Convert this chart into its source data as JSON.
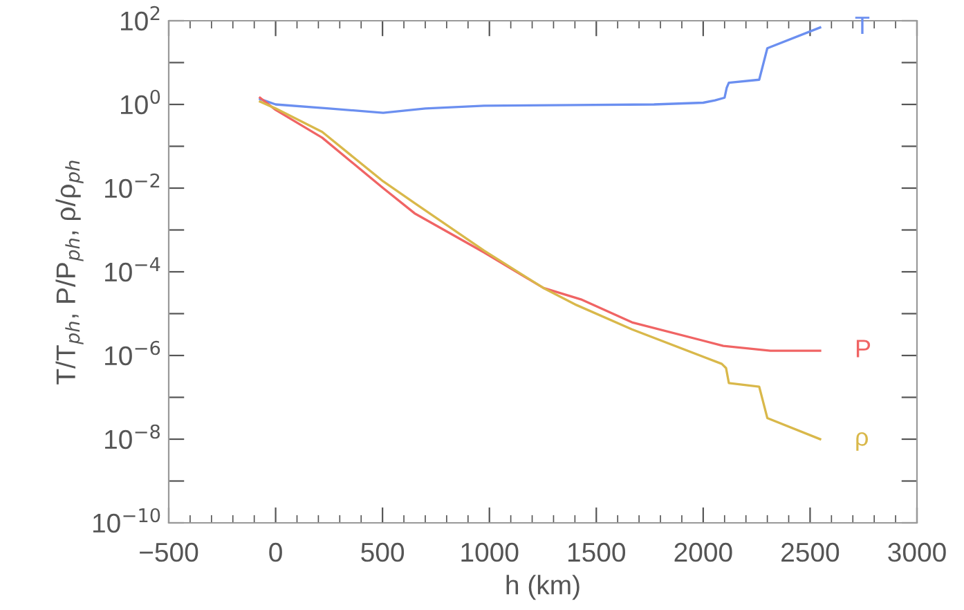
{
  "chart_data": {
    "type": "line",
    "xlabel": "h (km)",
    "ylabel": "T/T$_{ph}$, P/P$_{ph}$, ρ/ρ$_{ph}$",
    "log": "y",
    "grid": false,
    "legend": false,
    "marker": "none",
    "line_style": "solid",
    "xlim": [
      -500,
      3000
    ],
    "xticks": [
      {
        "value": -500,
        "label": "−500"
      },
      0,
      500,
      1000,
      1500,
      2000,
      2500,
      3000
    ],
    "ylim": [
      1e-10,
      100
    ],
    "yticks": [
      {
        "value": 1e-10,
        "label": "10$^{−10}$"
      },
      {
        "value": 1e-09,
        "label": null
      },
      {
        "value": 1e-08,
        "label": "10$^{−8}$"
      },
      {
        "value": 1e-07,
        "label": null
      },
      {
        "value": 1e-06,
        "label": "10$^{−6}$"
      },
      {
        "value": 1e-05,
        "label": null
      },
      {
        "value": 0.0001,
        "label": "10$^{−4}$"
      },
      {
        "value": 0.001,
        "label": null
      },
      {
        "value": 0.01,
        "label": "10$^{−2}$"
      },
      {
        "value": 0.1,
        "label": null
      },
      {
        "value": 1,
        "label": "10$^{0}$"
      },
      {
        "value": 10,
        "label": null
      },
      {
        "value": 100,
        "label": "10$^{2}$"
      }
    ],
    "series": [
      {
        "name": "T",
        "color": "#6b8ff0",
        "x": [
          -73,
          0,
          250,
          503,
          700,
          975,
          1400,
          1770,
          2000,
          2055,
          2100,
          2110,
          2120,
          2262,
          2300,
          2547
        ],
        "values": [
          1.35,
          1.0,
          0.8,
          0.63,
          0.8,
          0.93,
          0.97,
          1.0,
          1.1,
          1.25,
          1.45,
          2.5,
          3.3,
          3.9,
          22,
          69
        ]
      },
      {
        "name": "P",
        "color": "#f06464",
        "x": [
          -73,
          0,
          218,
          503,
          650,
          975,
          1253,
          1428,
          1667,
          2094,
          2314,
          2547
        ],
        "values": [
          1.45,
          0.74,
          0.16,
          0.01,
          0.0025,
          0.00029,
          4.1e-05,
          2.2e-05,
          6.2e-06,
          1.7e-06,
          1.3e-06,
          1.3e-06
        ]
      },
      {
        "name": "ρ",
        "color": "#d9b84a",
        "x": [
          -73,
          0,
          218,
          503,
          650,
          975,
          1253,
          1408,
          1667,
          2087,
          2107,
          2120,
          2262,
          2300,
          2547
        ],
        "values": [
          1.17,
          0.8,
          0.22,
          0.0145,
          0.0044,
          0.00032,
          4.1e-05,
          1.6e-05,
          4.2e-06,
          6.3e-07,
          5e-07,
          2.2e-07,
          1.8e-07,
          3.2e-08,
          1e-08
        ]
      }
    ]
  }
}
